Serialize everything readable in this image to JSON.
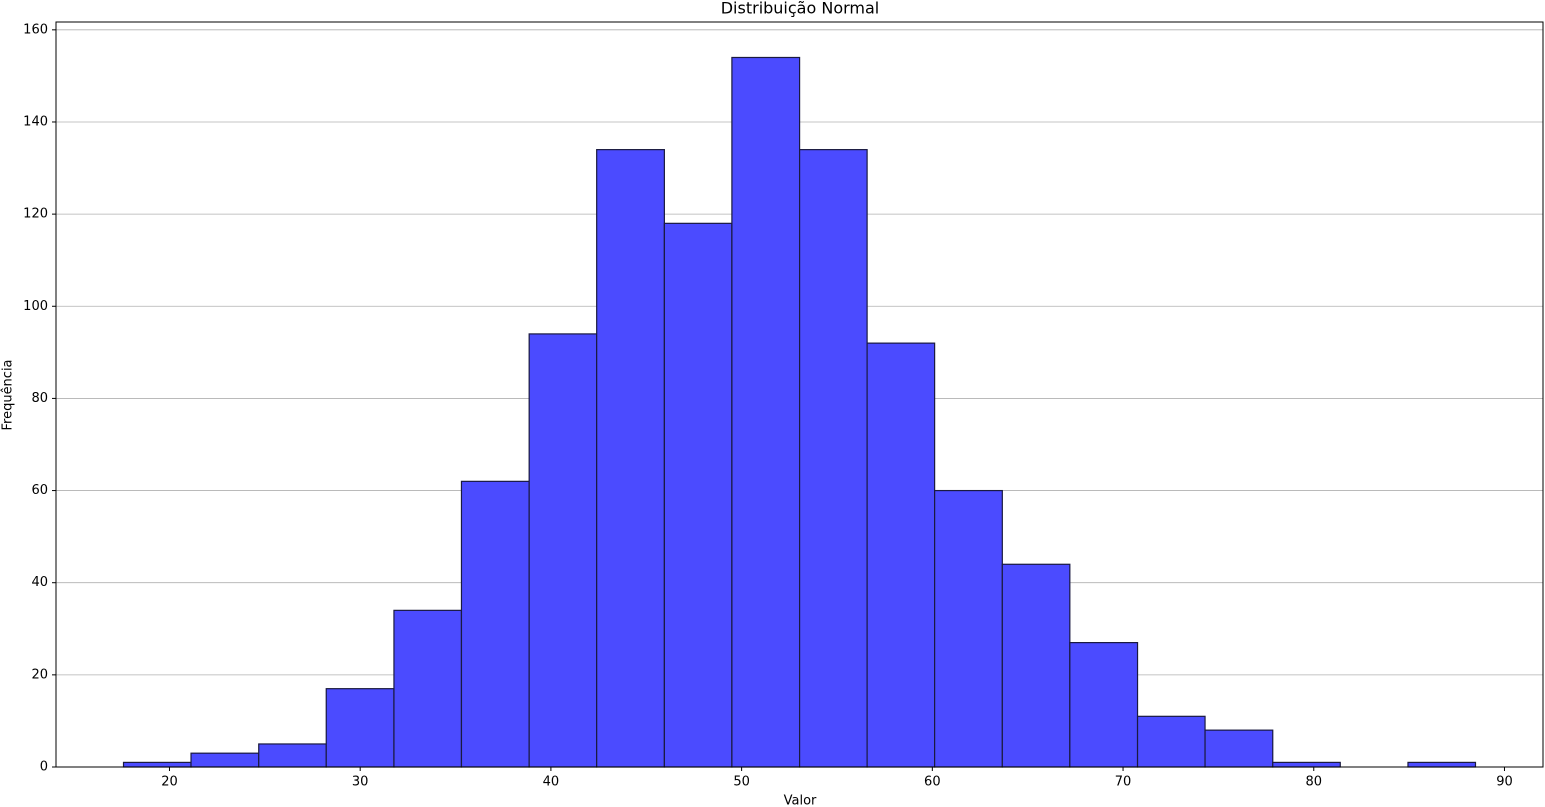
{
  "chart_data": {
    "type": "histogram",
    "title": "Distribuição Normal",
    "x_label": "Valor",
    "y_label": "Frequência",
    "bins": [
      17.59,
      21.13,
      24.68,
      28.22,
      31.77,
      35.31,
      38.86,
      42.4,
      45.95,
      49.49,
      53.04,
      56.58,
      60.12,
      63.67,
      67.21,
      70.76,
      74.3,
      77.85,
      81.39,
      84.94,
      88.48
    ],
    "values": [
      1,
      3,
      5,
      17,
      34,
      62,
      94,
      134,
      118,
      154,
      134,
      92,
      60,
      44,
      27,
      11,
      8,
      1,
      0,
      1
    ],
    "color": "#4b4bff",
    "edgecolor": "#1a1a40",
    "xlim": [
      14.05,
      92.02
    ],
    "ylim": [
      0,
      161.7
    ],
    "xticks": [
      20,
      30,
      40,
      50,
      60,
      70,
      80,
      90
    ],
    "yticks": [
      0,
      20,
      40,
      60,
      80,
      100,
      120,
      140,
      160
    ],
    "grid": "y"
  }
}
